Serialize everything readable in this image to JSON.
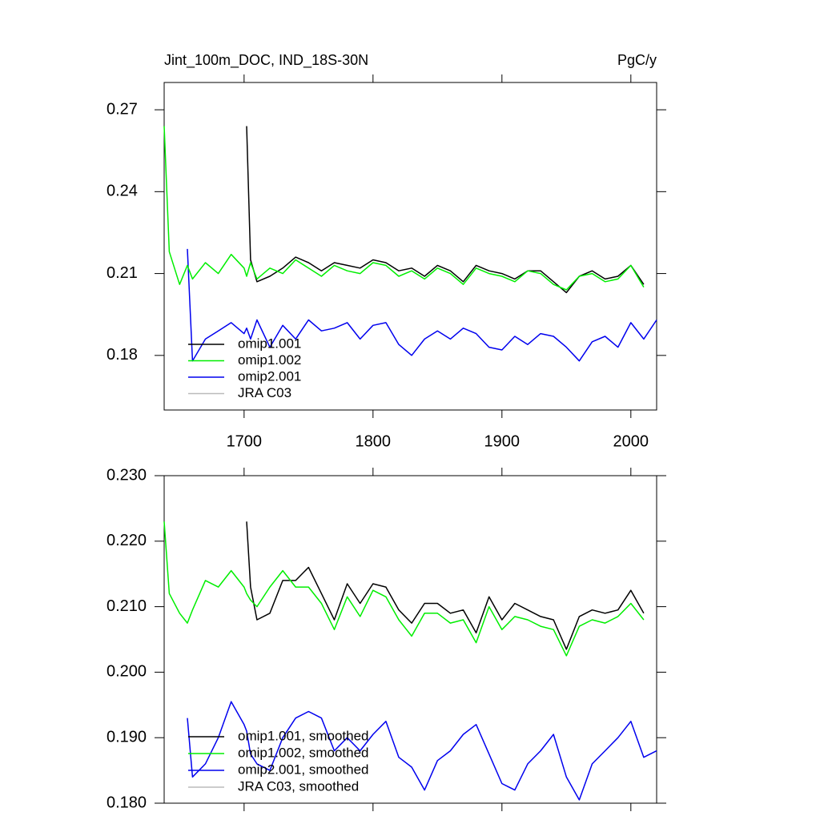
{
  "chart_data": [
    {
      "type": "line",
      "title": "Jint_100m_DOC, IND_18S-30N",
      "units": "PgC/y",
      "x": [
        1638,
        1642,
        1650,
        1656,
        1660,
        1670,
        1680,
        1690,
        1700,
        1702,
        1705,
        1710,
        1720,
        1730,
        1740,
        1750,
        1760,
        1770,
        1780,
        1790,
        1800,
        1810,
        1820,
        1830,
        1840,
        1850,
        1860,
        1870,
        1880,
        1890,
        1900,
        1910,
        1920,
        1930,
        1940,
        1950,
        1960,
        1970,
        1980,
        1990,
        2000,
        2010,
        2020
      ],
      "xlim": [
        1638,
        2020
      ],
      "xticks": [
        1700,
        1800,
        1900,
        2000
      ],
      "ylim": [
        0.16,
        0.28
      ],
      "yticks": [
        0.18,
        0.21,
        0.24,
        0.27
      ],
      "legend": "lower left",
      "series": [
        {
          "name": "omip1.001",
          "color": "#000000",
          "values": [
            null,
            null,
            null,
            null,
            null,
            null,
            null,
            null,
            null,
            0.264,
            0.215,
            0.207,
            0.209,
            0.212,
            0.216,
            0.214,
            0.211,
            0.214,
            0.213,
            0.212,
            0.215,
            0.214,
            0.211,
            0.212,
            0.209,
            0.213,
            0.211,
            0.207,
            0.213,
            0.211,
            0.21,
            0.208,
            0.211,
            0.211,
            0.207,
            0.203,
            0.209,
            0.211,
            0.208,
            0.209,
            0.213,
            0.206,
            null
          ]
        },
        {
          "name": "omip1.002",
          "color": "#00ee00",
          "values": [
            0.264,
            0.218,
            0.206,
            0.213,
            0.208,
            0.214,
            0.21,
            0.217,
            0.212,
            0.209,
            0.214,
            0.208,
            0.212,
            0.21,
            0.215,
            0.212,
            0.209,
            0.213,
            0.211,
            0.21,
            0.214,
            0.213,
            0.209,
            0.211,
            0.208,
            0.212,
            0.21,
            0.206,
            0.212,
            0.21,
            0.209,
            0.207,
            0.211,
            0.21,
            0.206,
            0.204,
            0.209,
            0.21,
            0.207,
            0.208,
            0.213,
            0.205,
            null
          ]
        },
        {
          "name": "omip2.001",
          "color": "#0000ee",
          "values": [
            null,
            null,
            null,
            0.219,
            0.178,
            0.186,
            0.189,
            0.192,
            0.188,
            0.19,
            0.186,
            0.193,
            0.183,
            0.191,
            0.186,
            0.193,
            0.189,
            0.19,
            0.192,
            0.186,
            0.191,
            0.192,
            0.184,
            0.18,
            0.186,
            0.189,
            0.186,
            0.19,
            0.188,
            0.183,
            0.182,
            0.187,
            0.184,
            0.188,
            0.187,
            0.183,
            0.178,
            0.185,
            0.187,
            0.183,
            0.192,
            0.186,
            0.193
          ]
        },
        {
          "name": "JRA C03",
          "color": "#bbbbbb",
          "values": [
            null,
            null,
            null,
            null,
            null,
            null,
            null,
            null,
            null,
            null,
            null,
            null,
            null,
            null,
            null,
            null,
            null,
            null,
            null,
            null,
            null,
            null,
            null,
            null,
            null,
            null,
            null,
            null,
            null,
            null,
            null,
            null,
            null,
            null,
            null,
            null,
            null,
            null,
            null,
            null,
            null,
            null,
            null
          ]
        }
      ]
    },
    {
      "type": "line",
      "x": [
        1638,
        1642,
        1650,
        1656,
        1660,
        1670,
        1680,
        1690,
        1700,
        1702,
        1705,
        1710,
        1720,
        1730,
        1740,
        1750,
        1760,
        1770,
        1780,
        1790,
        1800,
        1810,
        1820,
        1830,
        1840,
        1850,
        1860,
        1870,
        1880,
        1890,
        1900,
        1910,
        1920,
        1930,
        1940,
        1950,
        1960,
        1970,
        1980,
        1990,
        2000,
        2010,
        2020
      ],
      "xlim": [
        1638,
        2020
      ],
      "xticks": [
        1700,
        1800,
        1900,
        2000
      ],
      "ylim": [
        0.18,
        0.23
      ],
      "yticks": [
        {
          "value": 0.18,
          "label": "0.180"
        },
        {
          "value": 0.19,
          "label": "0.190"
        },
        {
          "value": 0.2,
          "label": "0.200"
        },
        {
          "value": 0.21,
          "label": "0.210"
        },
        {
          "value": 0.22,
          "label": "0.220"
        },
        {
          "value": 0.23,
          "label": "0.230"
        }
      ],
      "legend": "lower left",
      "series": [
        {
          "name": "omip1.001, smoothed",
          "color": "#000000",
          "values": [
            null,
            null,
            null,
            null,
            null,
            null,
            null,
            null,
            null,
            0.223,
            0.213,
            0.208,
            0.209,
            0.214,
            0.214,
            0.216,
            0.212,
            0.208,
            0.2135,
            0.2105,
            0.2135,
            0.213,
            0.2095,
            0.2075,
            0.2105,
            0.2105,
            0.209,
            0.2095,
            0.206,
            0.2115,
            0.208,
            0.2105,
            0.2095,
            0.2085,
            0.208,
            0.2035,
            0.2085,
            0.2095,
            0.209,
            0.2095,
            0.2125,
            0.209,
            null
          ]
        },
        {
          "name": "omip1.002, smoothed",
          "color": "#00ee00",
          "values": [
            0.223,
            0.212,
            0.209,
            0.2075,
            0.2095,
            0.214,
            0.213,
            0.2155,
            0.213,
            0.212,
            0.211,
            0.21,
            0.213,
            0.2155,
            0.213,
            0.213,
            0.2105,
            0.2065,
            0.2115,
            0.2085,
            0.2125,
            0.2115,
            0.208,
            0.2055,
            0.209,
            0.209,
            0.2075,
            0.208,
            0.2045,
            0.21,
            0.2065,
            0.2085,
            0.208,
            0.207,
            0.2065,
            0.2025,
            0.207,
            0.208,
            0.2075,
            0.2085,
            0.2105,
            0.208,
            null
          ]
        },
        {
          "name": "omip2.001, smoothed",
          "color": "#0000ee",
          "values": [
            null,
            null,
            null,
            0.193,
            0.184,
            0.186,
            0.19,
            0.1955,
            0.192,
            0.191,
            0.1875,
            0.186,
            0.185,
            0.19,
            0.193,
            0.194,
            0.193,
            0.188,
            0.19,
            0.188,
            0.1905,
            0.1925,
            0.187,
            0.1855,
            0.182,
            0.1865,
            0.188,
            0.1905,
            0.192,
            0.1875,
            0.183,
            0.182,
            0.186,
            0.188,
            0.1905,
            0.184,
            0.1805,
            0.186,
            0.188,
            0.19,
            0.1925,
            0.187,
            0.188
          ]
        },
        {
          "name": "JRA C03, smoothed",
          "color": "#bbbbbb",
          "values": [
            null,
            null,
            null,
            null,
            null,
            null,
            null,
            null,
            null,
            null,
            null,
            null,
            null,
            null,
            null,
            null,
            null,
            null,
            null,
            null,
            null,
            null,
            null,
            null,
            null,
            null,
            null,
            null,
            null,
            null,
            null,
            null,
            null,
            null,
            null,
            null,
            null,
            null,
            null,
            null,
            null,
            null,
            null
          ]
        }
      ]
    }
  ]
}
